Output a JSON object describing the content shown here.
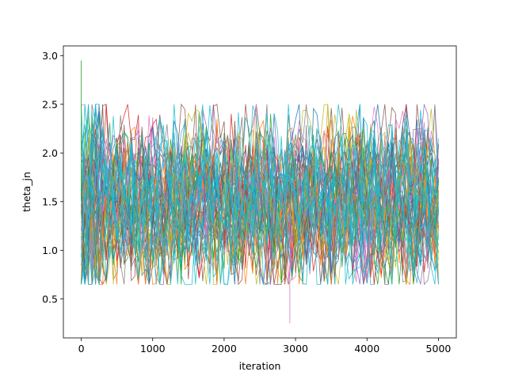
{
  "chart_data": {
    "type": "line",
    "title": "",
    "xlabel": "iteration",
    "ylabel": "theta_jn",
    "xlim": [
      -250,
      5250
    ],
    "ylim": [
      0.1,
      3.1
    ],
    "x_ticks": [
      0,
      1000,
      2000,
      3000,
      4000,
      5000
    ],
    "x_tick_labels": [
      "0",
      "1000",
      "2000",
      "3000",
      "4000",
      "5000"
    ],
    "y_ticks": [
      0.5,
      1.0,
      1.5,
      2.0,
      2.5,
      3.0
    ],
    "y_tick_labels": [
      "0.5",
      "1.0",
      "1.5",
      "2.0",
      "2.5",
      "3.0"
    ],
    "n_iterations": 5000,
    "grid": false,
    "legend": "none",
    "series_summary": {
      "walker_count_approx": 100,
      "center": 1.5,
      "typical_range": [
        0.75,
        2.35
      ],
      "min_spike": {
        "x": 2920,
        "y": 0.25
      },
      "max_spike": {
        "x": 0,
        "y": 2.95
      },
      "dominant_color": "#17becf"
    },
    "colors": [
      "#1f77b4",
      "#ff7f0e",
      "#2ca02c",
      "#d62728",
      "#9467bd",
      "#8c564b",
      "#e377c2",
      "#7f7f7f",
      "#bcbd22",
      "#17becf"
    ]
  }
}
